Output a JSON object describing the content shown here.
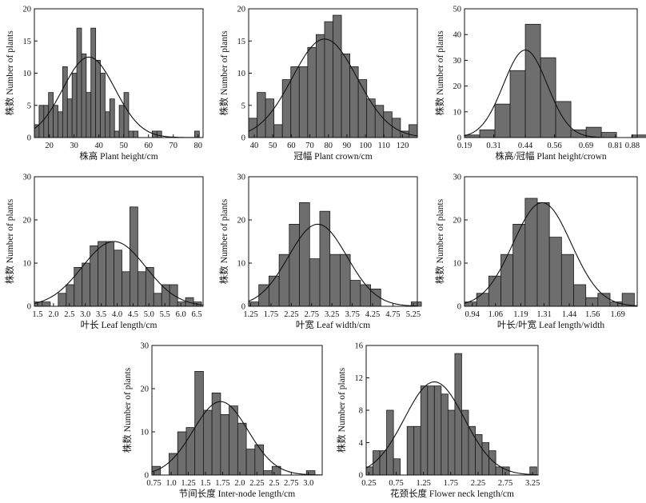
{
  "chart_data": [
    {
      "id": "plant-height",
      "type": "bar",
      "xlabel": "株高 Plant height/cm",
      "ylabel": "株数 Number of plants",
      "xlim": [
        14,
        82
      ],
      "ylim": [
        0,
        20
      ],
      "xticks": [
        20,
        30,
        40,
        50,
        60,
        70,
        80
      ],
      "yticks": [
        0,
        5,
        10,
        15,
        20
      ],
      "bin_start": 14,
      "bin_width": 1.9,
      "values": [
        2,
        5,
        5,
        7,
        5,
        4,
        11,
        6,
        10,
        17,
        13,
        7,
        17,
        12,
        10,
        4,
        6,
        1,
        5,
        7,
        1,
        1,
        0,
        0,
        0,
        1,
        1,
        0,
        0,
        0,
        0,
        0,
        0,
        0,
        1
      ],
      "curve": {
        "mean": 36,
        "sd": 10.5,
        "peak": 12.5
      }
    },
    {
      "id": "plant-crown",
      "type": "bar",
      "xlabel": "冠幅 Plant crown/cm",
      "ylabel": "株数 Number of plants",
      "xlim": [
        37,
        128
      ],
      "ylim": [
        0,
        20
      ],
      "xticks": [
        40,
        50,
        60,
        70,
        80,
        90,
        100,
        110,
        120
      ],
      "yticks": [
        0,
        5,
        10,
        15,
        20
      ],
      "bin_start": 37,
      "bin_width": 4.55,
      "values": [
        3,
        7,
        6,
        2,
        9,
        11,
        11,
        14,
        16,
        18,
        19,
        13,
        11,
        9,
        6,
        5,
        4,
        3,
        1,
        2
      ],
      "curve": {
        "mean": 78,
        "sd": 17.5,
        "peak": 15.3
      }
    },
    {
      "id": "height-crown-ratio",
      "type": "bar",
      "xlabel": "株高/冠幅 Plant height/crown",
      "ylabel": "株数 Number of plants",
      "xlim": [
        0.19,
        0.9
      ],
      "ylim": [
        0,
        50
      ],
      "xticks": [
        0.19,
        0.31,
        0.44,
        0.56,
        0.69,
        0.81,
        0.88
      ],
      "xticklabels": [
        "0.19",
        "0.31",
        "0.44",
        "0.56",
        "0.69",
        "0.81",
        "0.88"
      ],
      "yticks": [
        0,
        10,
        20,
        30,
        40,
        50
      ],
      "bin_start": 0.19,
      "bin_width": 0.0625,
      "values": [
        1,
        3,
        13,
        26,
        44,
        31,
        14,
        3,
        4,
        2,
        0,
        1
      ],
      "curve": {
        "mean": 0.44,
        "sd": 0.09,
        "peak": 34
      }
    },
    {
      "id": "leaf-length",
      "type": "bar",
      "xlabel": "叶长 Leaf length/cm",
      "ylabel": "株数 Number of plants",
      "xlim": [
        1.4,
        6.7
      ],
      "ylim": [
        0,
        30
      ],
      "xticks": [
        1.5,
        2.0,
        2.5,
        3.0,
        3.5,
        4.0,
        4.5,
        5.0,
        5.5,
        6.0,
        6.5
      ],
      "xticklabels": [
        "1.5",
        "2.0",
        "2.5",
        "3.0",
        "3.5",
        "4.0",
        "4.5",
        "5.0",
        "5.5",
        "6.0",
        "6.5"
      ],
      "yticks": [
        0,
        10,
        20,
        30
      ],
      "bin_start": 1.4,
      "bin_width": 0.25,
      "values": [
        1,
        1,
        0,
        3,
        5,
        9,
        10,
        14,
        15,
        15,
        13,
        8,
        23,
        8,
        9,
        3,
        5,
        5,
        1,
        2,
        1
      ],
      "curve": {
        "mean": 3.9,
        "sd": 1.0,
        "peak": 15
      }
    },
    {
      "id": "leaf-width",
      "type": "bar",
      "xlabel": "叶宽 Leaf width/cm",
      "ylabel": "株数 Number of plants",
      "xlim": [
        1.2,
        5.35
      ],
      "ylim": [
        0,
        30
      ],
      "xticks": [
        1.25,
        1.75,
        2.25,
        2.75,
        3.25,
        3.75,
        4.25,
        4.75,
        5.25
      ],
      "xticklabels": [
        "1.25",
        "1.75",
        "2.25",
        "2.75",
        "3.25",
        "3.75",
        "4.25",
        "4.75",
        "5.25"
      ],
      "yticks": [
        0,
        10,
        20,
        30
      ],
      "bin_start": 1.2,
      "bin_width": 0.25,
      "values": [
        1,
        5,
        7,
        12,
        19,
        24,
        11,
        22,
        12,
        12,
        6,
        5,
        4,
        0,
        0,
        0,
        1
      ],
      "curve": {
        "mean": 2.9,
        "sd": 0.72,
        "peak": 19
      }
    },
    {
      "id": "leaf-length-width-ratio",
      "type": "bar",
      "xlabel": "叶长/叶宽 Leaf length/width",
      "ylabel": "株数 Number of plants",
      "xlim": [
        0.9,
        1.79
      ],
      "ylim": [
        0,
        30
      ],
      "xticks": [
        0.94,
        1.06,
        1.19,
        1.31,
        1.44,
        1.56,
        1.69
      ],
      "xticklabels": [
        "0.94",
        "1.06",
        "1.19",
        "1.31",
        "1.44",
        "1.56",
        "1.69"
      ],
      "yticks": [
        0,
        10,
        20,
        30
      ],
      "bin_start": 0.9,
      "bin_width": 0.0625,
      "values": [
        1,
        3,
        7,
        12,
        19,
        25,
        24,
        16,
        12,
        5,
        2,
        3,
        1,
        3
      ],
      "curve": {
        "mean": 1.3,
        "sd": 0.15,
        "peak": 24
      }
    },
    {
      "id": "inter-node-length",
      "type": "bar",
      "xlabel": "节间长度 Inter-node length/cm",
      "ylabel": "株数 Number of plants",
      "xlim": [
        0.72,
        3.2
      ],
      "ylim": [
        0,
        30
      ],
      "xticks": [
        0.75,
        1.0,
        1.25,
        1.5,
        1.75,
        2.0,
        2.25,
        2.5,
        2.75,
        3.0
      ],
      "xticklabels": [
        "0.75",
        "1.0",
        "1.25",
        "1.5",
        "1.75",
        "2.0",
        "2.25",
        "2.5",
        "2.75",
        "3.0"
      ],
      "yticks": [
        0,
        10,
        20,
        30
      ],
      "bin_start": 0.72,
      "bin_width": 0.125,
      "values": [
        2,
        0,
        5,
        10,
        11,
        24,
        15,
        19,
        14,
        16,
        12,
        6,
        7,
        1,
        2,
        0,
        0,
        0,
        1
      ],
      "curve": {
        "mean": 1.72,
        "sd": 0.4,
        "peak": 17
      }
    },
    {
      "id": "flower-neck-length",
      "type": "bar",
      "xlabel": "花颈长度 Flower neck length/cm",
      "ylabel": "株数 Number of plants",
      "xlim": [
        0.2,
        3.35
      ],
      "ylim": [
        0,
        16
      ],
      "xticks": [
        0.25,
        0.75,
        1.25,
        1.75,
        2.25,
        2.75,
        3.25
      ],
      "xticklabels": [
        "0.25",
        "0.75",
        "1.25",
        "1.75",
        "2.25",
        "2.75",
        "3.25"
      ],
      "yticks": [
        0,
        4,
        8,
        12,
        16
      ],
      "bin_start": 0.2,
      "bin_width": 0.125,
      "values": [
        1,
        3,
        3,
        8,
        2,
        0,
        6,
        6,
        11,
        11,
        11,
        10,
        8,
        15,
        8,
        6,
        5,
        4,
        3,
        1,
        1,
        0,
        0,
        0,
        1
      ],
      "curve": {
        "mean": 1.45,
        "sd": 0.55,
        "peak": 11.5
      }
    }
  ]
}
